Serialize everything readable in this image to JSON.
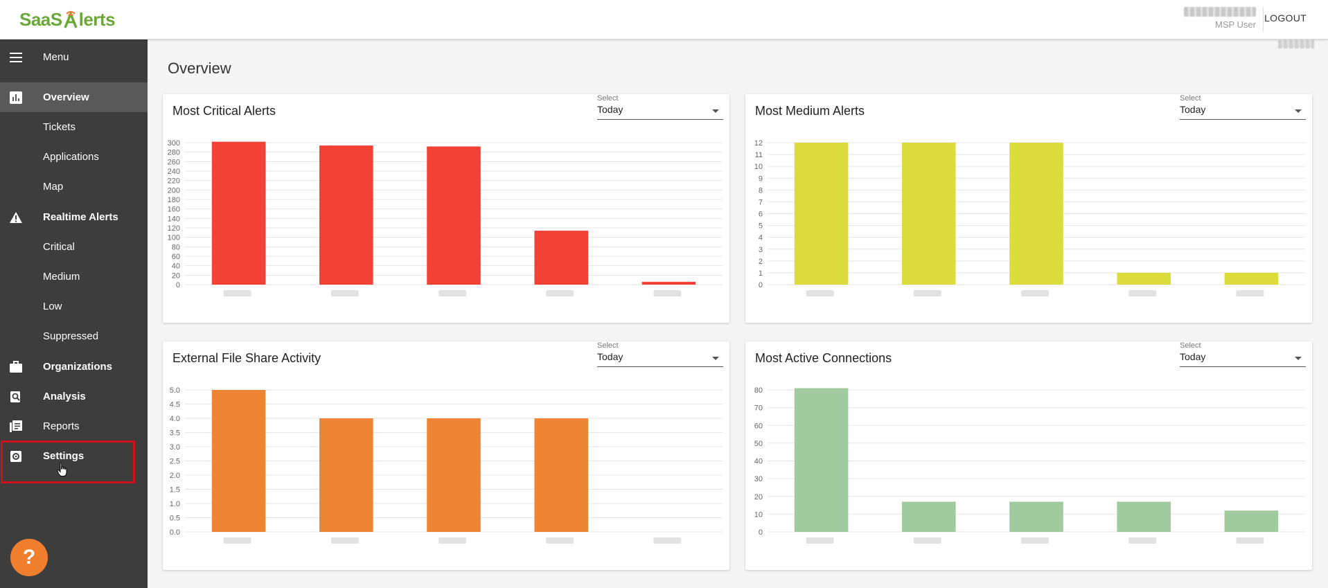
{
  "header": {
    "logo_text_1": "SaaS",
    "logo_text_2": "lerts",
    "user_role": "MSP User",
    "logout_label": "LOGOUT"
  },
  "page": {
    "title": "Overview"
  },
  "sidebar": {
    "items": [
      {
        "label": "Menu",
        "icon": "hamburger-icon",
        "bold": false
      },
      {
        "label": "Overview",
        "icon": "bar-chart-icon",
        "bold": true,
        "active": true
      },
      {
        "label": "Tickets",
        "icon": "",
        "bold": false
      },
      {
        "label": "Applications",
        "icon": "",
        "bold": false
      },
      {
        "label": "Map",
        "icon": "",
        "bold": false
      },
      {
        "label": "Realtime Alerts",
        "icon": "warning-icon",
        "bold": true
      },
      {
        "label": "Critical",
        "icon": "",
        "bold": false
      },
      {
        "label": "Medium",
        "icon": "",
        "bold": false
      },
      {
        "label": "Low",
        "icon": "",
        "bold": false
      },
      {
        "label": "Suppressed",
        "icon": "",
        "bold": false
      },
      {
        "label": "Organizations",
        "icon": "briefcase-icon",
        "bold": true
      },
      {
        "label": "Analysis",
        "icon": "magnify-icon",
        "bold": true
      },
      {
        "label": "Reports",
        "icon": "reports-icon",
        "bold": false
      },
      {
        "label": "Settings",
        "icon": "gear-icon",
        "bold": true
      }
    ],
    "help_label": "?"
  },
  "select": {
    "label": "Select",
    "value": "Today"
  },
  "colors": {
    "critical": "#f24236",
    "medium": "#dcdc3c",
    "file_share": "#ee8535",
    "connections": "#a0cb9e",
    "sidebar": "#3d3d3d",
    "brand_green": "#6aa83a",
    "help_orange": "#ef7f2c",
    "highlight_red": "#d0101a"
  },
  "chart_data": [
    {
      "type": "bar",
      "title": "Most Critical Alerts",
      "values": [
        302,
        294,
        292,
        114,
        6
      ],
      "yticks": [
        "0",
        "20",
        "40",
        "60",
        "80",
        "100",
        "120",
        "140",
        "160",
        "180",
        "200",
        "220",
        "240",
        "260",
        "280",
        "300"
      ],
      "ylim": [
        0,
        300
      ],
      "color": "#f24236"
    },
    {
      "type": "bar",
      "title": "Most Medium Alerts",
      "values": [
        12,
        12,
        12,
        1,
        1
      ],
      "yticks": [
        "0",
        "1",
        "2",
        "3",
        "4",
        "5",
        "6",
        "7",
        "8",
        "9",
        "10",
        "11",
        "12"
      ],
      "ylim": [
        0,
        12
      ],
      "color": "#dcdc3c"
    },
    {
      "type": "bar",
      "title": "External File Share Activity",
      "values": [
        5,
        4,
        4,
        4,
        0
      ],
      "yticks": [
        "0.0",
        "0.5",
        "1.0",
        "1.5",
        "2.0",
        "2.5",
        "3.0",
        "3.5",
        "4.0",
        "4.5",
        "5.0"
      ],
      "ylim": [
        0,
        5
      ],
      "color": "#ee8535"
    },
    {
      "type": "bar",
      "title": "Most Active Connections",
      "values": [
        81,
        17,
        17,
        17,
        12
      ],
      "yticks": [
        "0",
        "10",
        "20",
        "30",
        "40",
        "50",
        "60",
        "70",
        "80"
      ],
      "ylim": [
        0,
        80
      ],
      "color": "#a0cb9e"
    }
  ]
}
